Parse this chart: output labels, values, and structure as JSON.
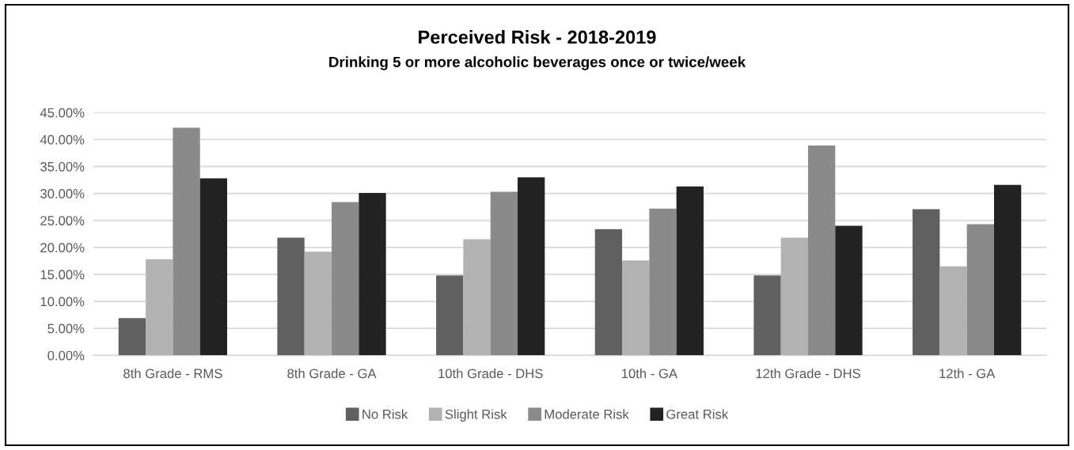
{
  "chart_data": {
    "type": "bar",
    "title": "Perceived Risk - 2018-2019",
    "subtitle": "Drinking 5 or more alcoholic beverages once or twice/week",
    "categories": [
      "8th Grade - RMS",
      "8th Grade - GA",
      "10th Grade - DHS",
      "10th - GA",
      "12th Grade - DHS",
      "12th - GA"
    ],
    "series": [
      {
        "name": "No Risk",
        "color": "#606060",
        "values": [
          6.9,
          21.8,
          14.8,
          23.4,
          14.8,
          27.1
        ]
      },
      {
        "name": "Slight Risk",
        "color": "#b2b2b2",
        "values": [
          17.8,
          19.2,
          21.5,
          17.6,
          21.8,
          16.5
        ]
      },
      {
        "name": "Moderate Risk",
        "color": "#8a8a8a",
        "values": [
          42.2,
          28.4,
          30.3,
          27.2,
          38.9,
          24.3
        ]
      },
      {
        "name": "Great Risk",
        "color": "#222222",
        "values": [
          32.8,
          30.1,
          33.0,
          31.3,
          24.0,
          31.6
        ]
      }
    ],
    "ylim": [
      0,
      45
    ],
    "yticks": [
      {
        "value": 0,
        "label": "0.00%"
      },
      {
        "value": 5,
        "label": "5.00%"
      },
      {
        "value": 10,
        "label": "10.00%"
      },
      {
        "value": 15,
        "label": "15.00%"
      },
      {
        "value": 20,
        "label": "20.00%"
      },
      {
        "value": 25,
        "label": "25.00%"
      },
      {
        "value": 30,
        "label": "30.00%"
      },
      {
        "value": 35,
        "label": "35.00%"
      },
      {
        "value": 40,
        "label": "40.00%"
      },
      {
        "value": 45,
        "label": "45.00%"
      }
    ],
    "grid": "y",
    "legend": "bottom"
  }
}
